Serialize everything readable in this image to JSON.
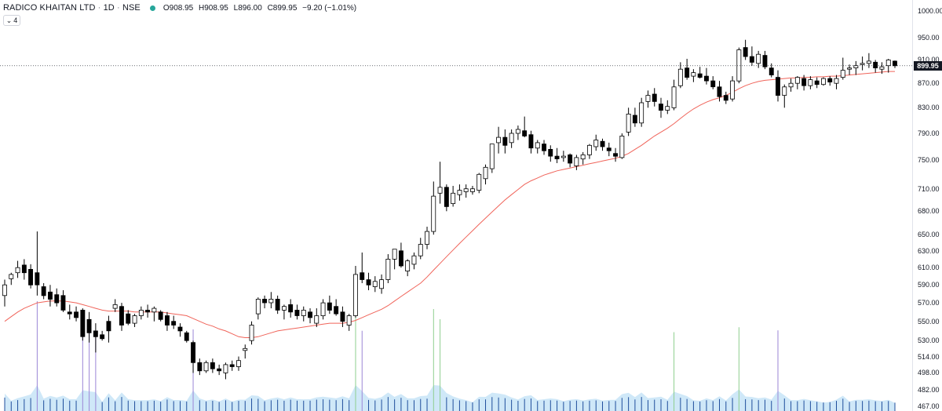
{
  "legend": {
    "symbol": "RADICO KHAITAN LTD",
    "interval": "1D",
    "exchange": "NSE",
    "sep": "·",
    "open_label": "O",
    "open": "908.95",
    "high_label": "H",
    "high": "908.95",
    "low_label": "L",
    "low": "896.00",
    "close_label": "C",
    "close": "899.95",
    "change": "−9.20 (−1.01%)",
    "collapse_count": "4",
    "status_color": "#26a69a"
  },
  "colors": {
    "up_body": "#ffffff",
    "down_body": "#000000",
    "wick": "#000000",
    "ma": "#f0645a",
    "volume_area": "#cfe8f8",
    "volume_bar": "#1f4e9c",
    "volume_spike_up": "#8fce8f",
    "volume_spike_down": "#9b86d6",
    "price_tag": "#131722"
  },
  "axis": {
    "ticks": [
      "1000.00",
      "950.00",
      "910.00",
      "870.00",
      "830.00",
      "790.00",
      "750.00",
      "710.00",
      "680.00",
      "650.00",
      "630.00",
      "610.00",
      "590.00",
      "570.00",
      "550.00",
      "530.00",
      "514.00",
      "498.00",
      "482.00",
      "467.00"
    ],
    "last_price": "899.95",
    "scale": "log"
  },
  "chart_data": {
    "type": "candlestick",
    "title": "RADICO KHAITAN LTD · 1D · NSE",
    "ylim": [
      467,
      1000
    ],
    "ohlc": [
      [
        578,
        596,
        566,
        590
      ],
      [
        597,
        604,
        590,
        602
      ],
      [
        604,
        618,
        598,
        610
      ],
      [
        613,
        620,
        596,
        604
      ],
      [
        608,
        614,
        586,
        590
      ],
      [
        604,
        654,
        578,
        590
      ],
      [
        588,
        592,
        574,
        578
      ],
      [
        582,
        590,
        566,
        574
      ],
      [
        579,
        586,
        566,
        570
      ],
      [
        578,
        584,
        560,
        562
      ],
      [
        560,
        568,
        552,
        558
      ],
      [
        560,
        566,
        550,
        554
      ],
      [
        562,
        564,
        530,
        534
      ],
      [
        552,
        560,
        528,
        538
      ],
      [
        540,
        548,
        518,
        534
      ],
      [
        536,
        540,
        530,
        532
      ],
      [
        550,
        556,
        528,
        540
      ],
      [
        564,
        574,
        560,
        568
      ],
      [
        566,
        570,
        540,
        546
      ],
      [
        558,
        562,
        546,
        548
      ],
      [
        548,
        558,
        544,
        556
      ],
      [
        556,
        566,
        552,
        562
      ],
      [
        562,
        568,
        554,
        560
      ],
      [
        560,
        566,
        550,
        564
      ],
      [
        560,
        562,
        550,
        552
      ],
      [
        556,
        560,
        540,
        546
      ],
      [
        550,
        556,
        542,
        546
      ],
      [
        544,
        548,
        534,
        540
      ],
      [
        538,
        540,
        528,
        530
      ],
      [
        528,
        530,
        498,
        508
      ],
      [
        508,
        512,
        496,
        500
      ],
      [
        500,
        510,
        498,
        508
      ],
      [
        508,
        512,
        498,
        502
      ],
      [
        502,
        506,
        496,
        500
      ],
      [
        498,
        508,
        492,
        506
      ],
      [
        506,
        510,
        500,
        504
      ],
      [
        504,
        514,
        500,
        510
      ],
      [
        520,
        526,
        512,
        522
      ],
      [
        530,
        550,
        526,
        546
      ],
      [
        558,
        576,
        552,
        574
      ],
      [
        574,
        578,
        564,
        570
      ],
      [
        570,
        582,
        564,
        574
      ],
      [
        574,
        578,
        558,
        562
      ],
      [
        562,
        568,
        552,
        566
      ],
      [
        568,
        574,
        554,
        560
      ],
      [
        562,
        568,
        552,
        556
      ],
      [
        556,
        566,
        550,
        562
      ],
      [
        560,
        564,
        548,
        554
      ],
      [
        548,
        564,
        544,
        556
      ],
      [
        556,
        574,
        552,
        570
      ],
      [
        570,
        578,
        558,
        562
      ],
      [
        566,
        574,
        556,
        558
      ],
      [
        560,
        566,
        544,
        550
      ],
      [
        546,
        558,
        540,
        556
      ],
      [
        556,
        612,
        554,
        602
      ],
      [
        604,
        628,
        592,
        596
      ],
      [
        596,
        604,
        584,
        590
      ],
      [
        588,
        600,
        582,
        594
      ],
      [
        586,
        602,
        580,
        596
      ],
      [
        596,
        626,
        592,
        620
      ],
      [
        620,
        632,
        608,
        632
      ],
      [
        630,
        640,
        610,
        612
      ],
      [
        606,
        620,
        600,
        618
      ],
      [
        614,
        628,
        608,
        624
      ],
      [
        624,
        646,
        620,
        638
      ],
      [
        638,
        660,
        632,
        654
      ],
      [
        654,
        720,
        650,
        700
      ],
      [
        704,
        748,
        690,
        712
      ],
      [
        712,
        716,
        680,
        686
      ],
      [
        690,
        714,
        686,
        704
      ],
      [
        702,
        716,
        694,
        708
      ],
      [
        706,
        716,
        698,
        710
      ],
      [
        706,
        714,
        702,
        710
      ],
      [
        708,
        732,
        704,
        730
      ],
      [
        724,
        744,
        716,
        740
      ],
      [
        738,
        774,
        732,
        774
      ],
      [
        776,
        800,
        760,
        784
      ],
      [
        784,
        796,
        760,
        772
      ],
      [
        776,
        796,
        768,
        790
      ],
      [
        790,
        802,
        780,
        796
      ],
      [
        794,
        816,
        784,
        786
      ],
      [
        788,
        794,
        760,
        768
      ],
      [
        768,
        780,
        760,
        776
      ],
      [
        774,
        780,
        758,
        764
      ],
      [
        766,
        772,
        748,
        756
      ],
      [
        756,
        768,
        746,
        752
      ],
      [
        754,
        764,
        748,
        756
      ],
      [
        758,
        760,
        740,
        746
      ],
      [
        742,
        758,
        736,
        754
      ],
      [
        752,
        762,
        744,
        758
      ],
      [
        758,
        774,
        752,
        772
      ],
      [
        770,
        788,
        764,
        780
      ],
      [
        778,
        782,
        764,
        770
      ],
      [
        768,
        776,
        756,
        764
      ],
      [
        760,
        768,
        748,
        756
      ],
      [
        754,
        790,
        752,
        786
      ],
      [
        792,
        830,
        786,
        820
      ],
      [
        818,
        830,
        800,
        806
      ],
      [
        806,
        846,
        800,
        838
      ],
      [
        840,
        858,
        830,
        850
      ],
      [
        852,
        862,
        832,
        840
      ],
      [
        836,
        846,
        814,
        826
      ],
      [
        826,
        842,
        820,
        832
      ],
      [
        830,
        876,
        826,
        864
      ],
      [
        866,
        906,
        862,
        894
      ],
      [
        896,
        912,
        876,
        880
      ],
      [
        882,
        894,
        872,
        888
      ],
      [
        886,
        898,
        878,
        880
      ],
      [
        882,
        896,
        868,
        874
      ],
      [
        874,
        882,
        860,
        864
      ],
      [
        864,
        874,
        840,
        848
      ],
      [
        850,
        856,
        836,
        842
      ],
      [
        844,
        882,
        840,
        874
      ],
      [
        874,
        932,
        870,
        928
      ],
      [
        932,
        946,
        910,
        916
      ],
      [
        916,
        934,
        900,
        906
      ],
      [
        904,
        926,
        896,
        920
      ],
      [
        918,
        926,
        894,
        898
      ],
      [
        896,
        904,
        880,
        884
      ],
      [
        880,
        892,
        840,
        850
      ],
      [
        850,
        868,
        830,
        864
      ],
      [
        864,
        878,
        856,
        870
      ],
      [
        870,
        882,
        860,
        880
      ],
      [
        878,
        884,
        858,
        866
      ],
      [
        866,
        882,
        860,
        876
      ],
      [
        874,
        880,
        862,
        868
      ],
      [
        868,
        880,
        866,
        878
      ],
      [
        878,
        882,
        866,
        872
      ],
      [
        870,
        884,
        860,
        878
      ],
      [
        880,
        914,
        876,
        892
      ],
      [
        894,
        902,
        884,
        896
      ],
      [
        896,
        908,
        884,
        900
      ],
      [
        902,
        916,
        892,
        904
      ],
      [
        904,
        922,
        896,
        908
      ],
      [
        906,
        910,
        888,
        896
      ],
      [
        894,
        906,
        886,
        898
      ],
      [
        900,
        912,
        888,
        910
      ],
      [
        908,
        909,
        896,
        900
      ]
    ],
    "moving_average": [
      550,
      555,
      560,
      564,
      567,
      570,
      571,
      572,
      572,
      572,
      571,
      570,
      568,
      566,
      564,
      562,
      561,
      561,
      561,
      561,
      560,
      560,
      560,
      560,
      560,
      559,
      558,
      557,
      556,
      553,
      550,
      547,
      545,
      542,
      540,
      537,
      534,
      533,
      533,
      534,
      536,
      538,
      540,
      541,
      542,
      543,
      544,
      545,
      546,
      547,
      548,
      548,
      548,
      549,
      551,
      554,
      557,
      560,
      563,
      567,
      572,
      577,
      582,
      587,
      592,
      599,
      607,
      615,
      623,
      631,
      639,
      647,
      655,
      663,
      671,
      679,
      687,
      695,
      702,
      709,
      716,
      721,
      725,
      729,
      732,
      735,
      737,
      739,
      741,
      743,
      745,
      747,
      749,
      751,
      753,
      756,
      760,
      766,
      772,
      779,
      786,
      792,
      798,
      805,
      813,
      821,
      828,
      834,
      839,
      843,
      846,
      850,
      855,
      861,
      866,
      870,
      873,
      875,
      876,
      877,
      878,
      879,
      879,
      880,
      880,
      881,
      881,
      882,
      882,
      883,
      884,
      885,
      886,
      887,
      888,
      889,
      890,
      890
    ],
    "volume_baseline": 0.12
  }
}
